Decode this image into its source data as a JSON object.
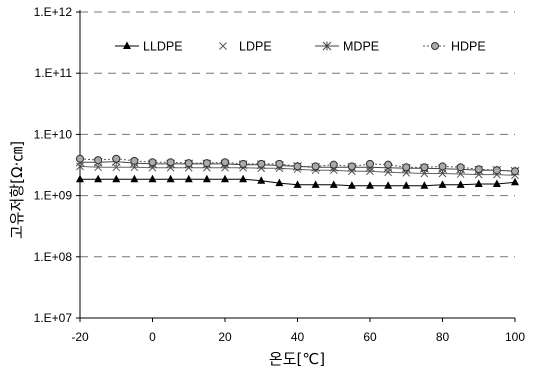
{
  "chart_data": {
    "type": "line",
    "title": "",
    "xlabel": "온도[℃]",
    "ylabel": "고유저항[Ω·㎝]",
    "xlim": [
      -20,
      100
    ],
    "ylim": [
      10000000,
      1000000000000
    ],
    "yscale": "log",
    "grid": "horizontal-dashed",
    "legend_position": "top-inside",
    "x_ticks": [
      -20,
      0,
      20,
      40,
      60,
      80,
      100
    ],
    "x_tick_labels": [
      "-20",
      "0",
      "20",
      "40",
      "60",
      "80",
      "100"
    ],
    "y_ticks": [
      10000000,
      100000000,
      1000000000,
      10000000000,
      100000000000,
      1000000000000
    ],
    "y_tick_labels": [
      "1.E+07",
      "1.E+08",
      "1.E+09",
      "1.E+10",
      "1.E+11",
      "1.E+12"
    ],
    "x": [
      -20,
      -15,
      -10,
      -5,
      0,
      5,
      10,
      15,
      20,
      25,
      30,
      35,
      40,
      45,
      50,
      55,
      60,
      65,
      70,
      75,
      80,
      85,
      90,
      95,
      100
    ],
    "series": [
      {
        "name": "LLDPE",
        "marker": "triangle",
        "values": [
          1850000000.0,
          1850000000.0,
          1850000000.0,
          1850000000.0,
          1850000000.0,
          1850000000.0,
          1850000000.0,
          1850000000.0,
          1850000000.0,
          1850000000.0,
          1750000000.0,
          1600000000.0,
          1500000000.0,
          1500000000.0,
          1500000000.0,
          1450000000.0,
          1450000000.0,
          1450000000.0,
          1450000000.0,
          1450000000.0,
          1500000000.0,
          1500000000.0,
          1550000000.0,
          1550000000.0,
          1650000000.0
        ]
      },
      {
        "name": "LDPE",
        "marker": "x",
        "values": [
          3000000000.0,
          2900000000.0,
          2900000000.0,
          2900000000.0,
          2850000000.0,
          2850000000.0,
          2850000000.0,
          2850000000.0,
          2850000000.0,
          2850000000.0,
          2800000000.0,
          2800000000.0,
          2700000000.0,
          2600000000.0,
          2600000000.0,
          2500000000.0,
          2500000000.0,
          2400000000.0,
          2350000000.0,
          2300000000.0,
          2300000000.0,
          2250000000.0,
          2200000000.0,
          2200000000.0,
          2150000000.0
        ]
      },
      {
        "name": "MDPE",
        "marker": "asterisk",
        "values": [
          3500000000.0,
          3500000000.0,
          3600000000.0,
          3400000000.0,
          3300000000.0,
          3300000000.0,
          3300000000.0,
          3300000000.0,
          3300000000.0,
          3200000000.0,
          3200000000.0,
          3100000000.0,
          3000000000.0,
          2900000000.0,
          2900000000.0,
          2900000000.0,
          2900000000.0,
          2850000000.0,
          2800000000.0,
          2800000000.0,
          2750000000.0,
          2700000000.0,
          2600000000.0,
          2600000000.0,
          2500000000.0
        ]
      },
      {
        "name": "HDPE",
        "marker": "circle",
        "values": [
          4000000000.0,
          3800000000.0,
          4000000000.0,
          3700000000.0,
          3500000000.0,
          3500000000.0,
          3400000000.0,
          3400000000.0,
          3500000000.0,
          3300000000.0,
          3300000000.0,
          3300000000.0,
          3000000000.0,
          3000000000.0,
          3200000000.0,
          3000000000.0,
          3300000000.0,
          3200000000.0,
          2900000000.0,
          2900000000.0,
          3000000000.0,
          2900000000.0,
          2700000000.0,
          2600000000.0,
          2500000000.0
        ]
      }
    ]
  }
}
